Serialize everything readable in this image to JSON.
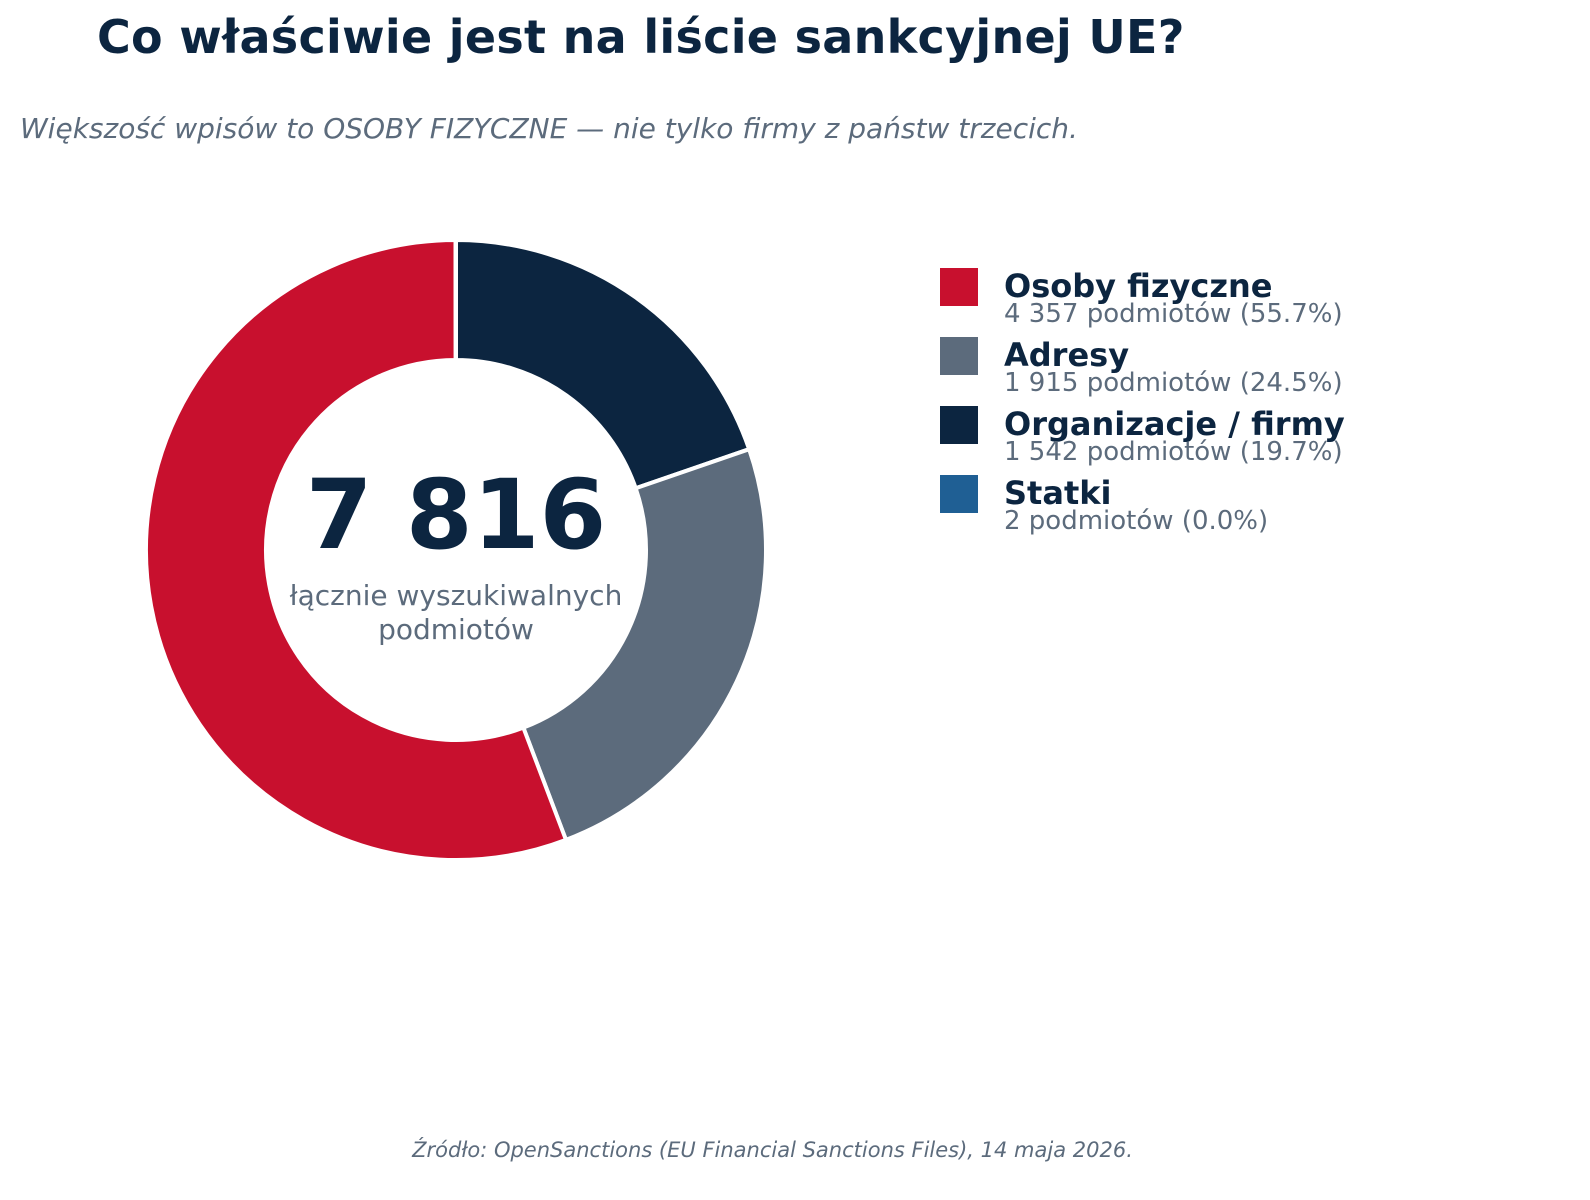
{
  "title": "Co właściwie jest na liście sankcyjnej UE?",
  "subtitle": "Większość wpisów to OSOBY FIZYCZNE — nie tylko firmy z państw trzecich.",
  "center": {
    "total": "7 816",
    "label_line1": "łącznie wyszukiwalnych",
    "label_line2": "podmiotów"
  },
  "legend": [
    {
      "name": "Osoby fizyczne",
      "detail": "4 357 podmiotów  (55.7%)",
      "color": "#c8102e"
    },
    {
      "name": "Adresy",
      "detail": "1 915 podmiotów  (24.5%)",
      "color": "#5c6b7c"
    },
    {
      "name": "Organizacje / firmy",
      "detail": "1 542 podmiotów  (19.7%)",
      "color": "#0c2540"
    },
    {
      "name": "Statki",
      "detail": "2 podmiotów  (0.0%)",
      "color": "#1f5f94"
    }
  ],
  "source": "Źródło: OpenSanctions (EU Financial Sanctions Files), 14 maja 2026.",
  "chart_data": {
    "type": "pie",
    "style": "donut",
    "start": "12 o'clock, clockwise",
    "slices": [
      {
        "label": "Organizacje / firmy",
        "value": 1542,
        "color": "#0c2540"
      },
      {
        "label": "Adresy",
        "value": 1915,
        "color": "#5c6b7c"
      },
      {
        "label": "Osoby fizyczne",
        "value": 4357,
        "color": "#c8102e"
      },
      {
        "label": "Statki",
        "value": 2,
        "color": "#1f5f94"
      }
    ],
    "total": 7816
  }
}
